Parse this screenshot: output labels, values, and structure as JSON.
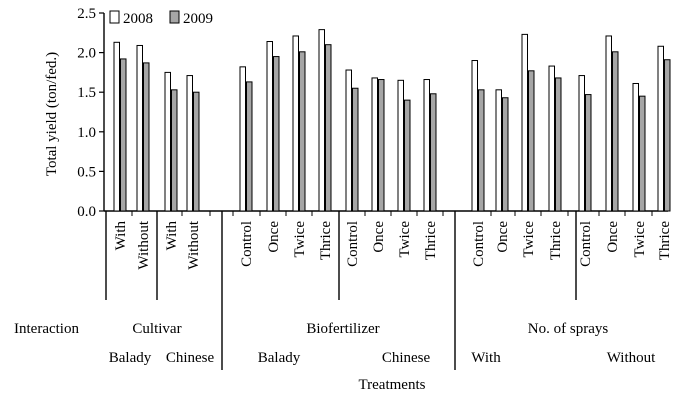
{
  "chart_data": {
    "type": "bar",
    "ylabel": "Total yield (ton/fed.)",
    "xlabel": "Treatments",
    "ylim": [
      0,
      2.5
    ],
    "yticks": [
      "0.0",
      "0.5",
      "1.0",
      "1.5",
      "2.0",
      "2.5"
    ],
    "legend_position": "top-left",
    "series": [
      {
        "name": "2008",
        "color": "#ffffff",
        "values": [
          2.13,
          2.09,
          1.75,
          1.71,
          1.82,
          2.14,
          2.21,
          2.29,
          1.78,
          1.68,
          1.65,
          1.66,
          1.9,
          1.53,
          2.23,
          1.83,
          1.71,
          2.21,
          1.61,
          2.08
        ]
      },
      {
        "name": "2009",
        "color": "#a6a6a6",
        "values": [
          1.92,
          1.87,
          1.53,
          1.5,
          1.63,
          1.95,
          2.01,
          2.1,
          1.55,
          1.66,
          1.4,
          1.48,
          1.53,
          1.43,
          1.77,
          1.68,
          1.47,
          2.01,
          1.45,
          1.91
        ]
      }
    ],
    "categories": [
      "With",
      "Without",
      "With",
      "Without",
      "Control",
      "Once",
      "Twice",
      "Thrice",
      "Control",
      "Once",
      "Twice",
      "Thrice",
      "Control",
      "Once",
      "Twice",
      "Thrice",
      "Control",
      "Once",
      "Twice",
      "Thrice"
    ],
    "group_labels": {
      "interaction": "Interaction",
      "top": [
        "Cultivar",
        "Biofertilizer",
        "No. of sprays"
      ],
      "bottom": [
        "Balady",
        "Chinese",
        "Balady",
        "Chinese",
        "With",
        "Without"
      ]
    }
  }
}
